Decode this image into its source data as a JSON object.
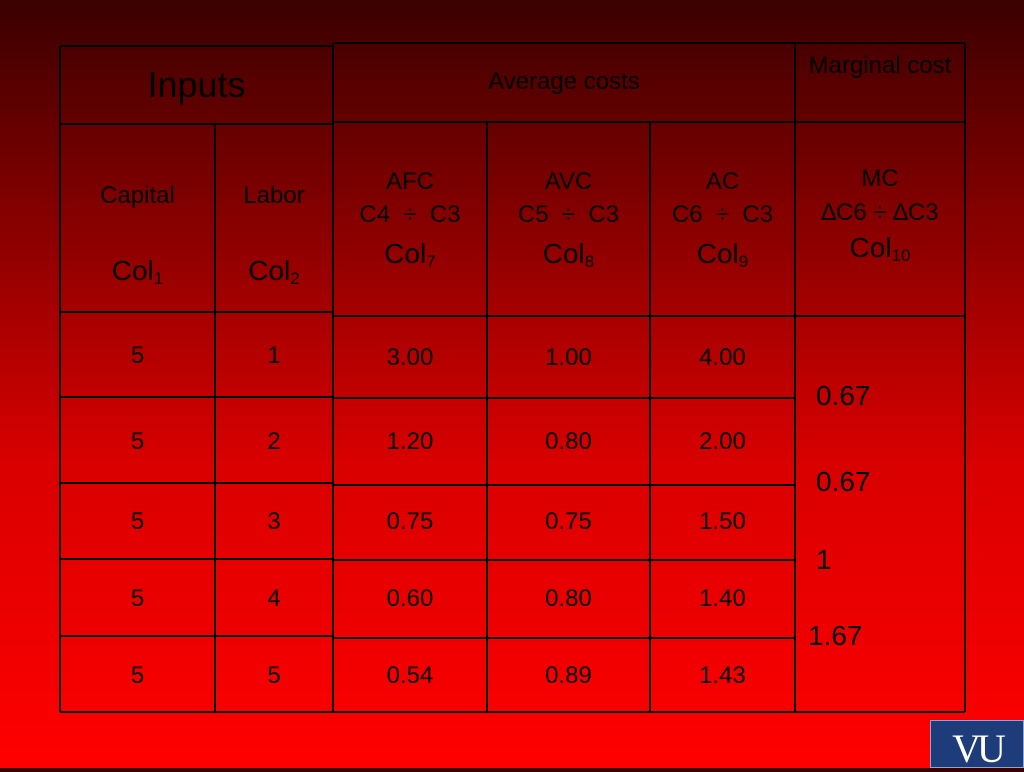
{
  "headers": {
    "inputs": "Inputs",
    "average_costs": "Average costs",
    "marginal_cost": "Marginal cost"
  },
  "subheaders": {
    "capital": {
      "label": "Capital",
      "col": "Col",
      "num": "1"
    },
    "labor": {
      "label": "Labor",
      "col": "Col",
      "num": "2"
    },
    "afc": {
      "label": "AFC",
      "formula": "C4  ÷  C3",
      "col": "Col",
      "num": "7"
    },
    "avc": {
      "label": "AVC",
      "formula": "C5  ÷  C3",
      "col": "Col",
      "num": "8"
    },
    "ac": {
      "label": "AC",
      "formula": "C6  ÷  C3",
      "col": "Col",
      "num": "9"
    },
    "mc": {
      "label": "MC",
      "formula": "∆C6 ÷ ∆C3",
      "col": "Col",
      "num": "10"
    }
  },
  "rows": [
    {
      "capital": "5",
      "labor": "1",
      "afc": "3.00",
      "avc": "1.00",
      "ac": "4.00"
    },
    {
      "capital": "5",
      "labor": "2",
      "afc": "1.20",
      "avc": "0.80",
      "ac": "2.00"
    },
    {
      "capital": "5",
      "labor": "3",
      "afc": "0.75",
      "avc": "0.75",
      "ac": "1.50"
    },
    {
      "capital": "5",
      "labor": "4",
      "afc": "0.60",
      "avc": "0.80",
      "ac": "1.40"
    },
    {
      "capital": "5",
      "labor": "5",
      "afc": "0.54",
      "avc": "0.89",
      "ac": "1.43"
    }
  ],
  "mc_values": [
    "0.67",
    "0.67",
    "1",
    "1.67"
  ],
  "logo": {
    "text": "VU"
  }
}
